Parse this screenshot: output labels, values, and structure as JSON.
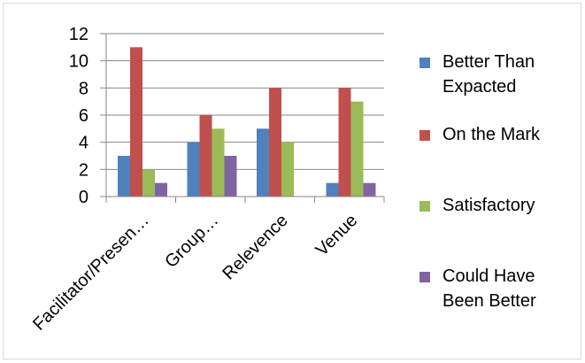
{
  "chart_data": {
    "type": "bar",
    "categories": [
      "Facilitator/Presen…",
      "Group…",
      "Relevence",
      "Venue"
    ],
    "series": [
      {
        "name": "Better Than Expacted",
        "name_lines": [
          "Better Than",
          "Expacted"
        ],
        "color": "#4f81bd",
        "values": [
          3,
          4,
          5,
          1
        ]
      },
      {
        "name": "On the Mark",
        "name_lines": [
          "On the Mark"
        ],
        "color": "#c0504d",
        "values": [
          11,
          6,
          8,
          8
        ]
      },
      {
        "name": "Satisfactory",
        "name_lines": [
          "Satisfactory"
        ],
        "color": "#9bbb59",
        "values": [
          2,
          5,
          4,
          7
        ]
      },
      {
        "name": "Could Have Been Better",
        "name_lines": [
          "Could Have",
          "Been Better"
        ],
        "color": "#8064a2",
        "values": [
          1,
          3,
          0,
          1
        ]
      }
    ],
    "ylim": [
      0,
      12
    ],
    "yticks": [
      0,
      2,
      4,
      6,
      8,
      10,
      12
    ],
    "ytick_labels": [
      "0",
      "2",
      "4",
      "6",
      "8",
      "10",
      "12"
    ],
    "grid": true,
    "legend": "right",
    "title": "",
    "xlabel": "",
    "ylabel": ""
  }
}
